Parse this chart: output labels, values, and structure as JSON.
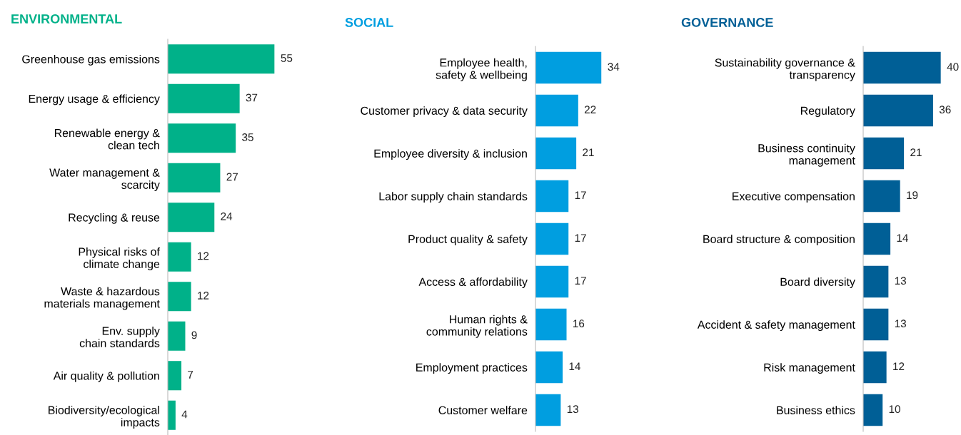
{
  "chart_data": [
    {
      "type": "bar",
      "orientation": "horizontal",
      "title": "ENVIRONMENTAL",
      "data_labels": true,
      "tick_labels": "y",
      "grid": false,
      "legend": false,
      "categories": [
        "Greenhouse gas emissions",
        "Energy usage & efficiency",
        "Renewable energy &\nclean tech",
        "Water management &\nscarcity",
        "Recycling & reuse",
        "Physical risks of\nclimate change",
        "Waste & hazardous\nmaterials management",
        "Env. supply\nchain standards",
        "Air quality & pollution",
        "Biodiversity/ecological\nimpacts"
      ],
      "series": [
        {
          "color": "#00b189",
          "values": [
            55,
            37,
            35,
            27,
            24,
            12,
            12,
            9,
            7,
            4
          ]
        }
      ]
    },
    {
      "type": "bar",
      "orientation": "horizontal",
      "title": "SOCIAL",
      "data_labels": true,
      "tick_labels": "y",
      "grid": false,
      "legend": false,
      "categories": [
        "Employee health,\nsafety & wellbeing",
        "Customer privacy & data security",
        "Employee diversity & inclusion",
        "Labor supply chain standards",
        "Product quality & safety",
        "Access & affordability",
        "Human rights &\ncommunity relations",
        "Employment practices",
        "Customer welfare"
      ],
      "series": [
        {
          "color": "#009ee0",
          "values": [
            34,
            22,
            21,
            17,
            17,
            17,
            16,
            14,
            13
          ]
        }
      ]
    },
    {
      "type": "bar",
      "orientation": "horizontal",
      "title": "GOVERNANCE",
      "data_labels": true,
      "tick_labels": "y",
      "grid": false,
      "legend": false,
      "categories": [
        "Sustainability governance &\ntransparency",
        "Regulatory",
        "Business continuity\nmanagement",
        "Executive compensation",
        "Board structure & composition",
        "Board diversity",
        "Accident & safety management",
        "Risk management",
        "Business ethics"
      ],
      "series": [
        {
          "color": "#005f96",
          "values": [
            40,
            36,
            21,
            19,
            14,
            13,
            13,
            12,
            10
          ]
        }
      ]
    }
  ]
}
